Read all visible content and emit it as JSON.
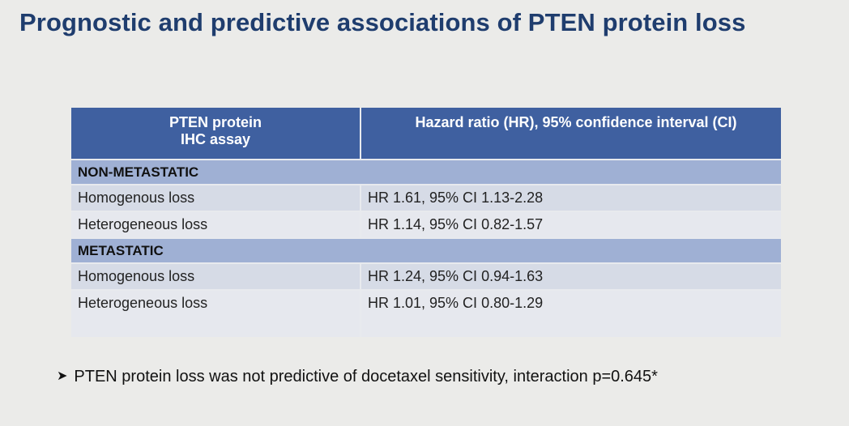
{
  "slide": {
    "title": "Prognostic and predictive associations of PTEN protein loss"
  },
  "table": {
    "headers": [
      "PTEN protein\nIHC assay",
      "Hazard ratio (HR), 95% confidence interval (CI)"
    ],
    "sections": [
      {
        "label": "NON-METASTATIC",
        "rows": [
          {
            "assay": "Homogenous loss",
            "hr": "HR 1.61, 95% CI 1.13-2.28"
          },
          {
            "assay": "Heterogeneous loss",
            "hr": "HR 1.14, 95% CI 0.82-1.57"
          }
        ]
      },
      {
        "label": "METASTATIC",
        "rows": [
          {
            "assay": "Homogenous loss",
            "hr": "HR 1.24, 95% CI 0.94-1.63"
          },
          {
            "assay": "Heterogeneous loss",
            "hr": "HR 1.01, 95% CI 0.80-1.29"
          }
        ]
      }
    ]
  },
  "note": {
    "bullet_icon": "arrowhead-bullet-icon",
    "text": "PTEN protein loss was not predictive of docetaxel sensitivity, interaction p=0.645*"
  },
  "colors": {
    "title": "#1f3d6e",
    "header_bg": "#3f60a0",
    "section_bg": "#9fb0d4",
    "row_dark": "#d6dbe6",
    "row_light": "#e6e8ee",
    "background": "#ebebe9"
  }
}
